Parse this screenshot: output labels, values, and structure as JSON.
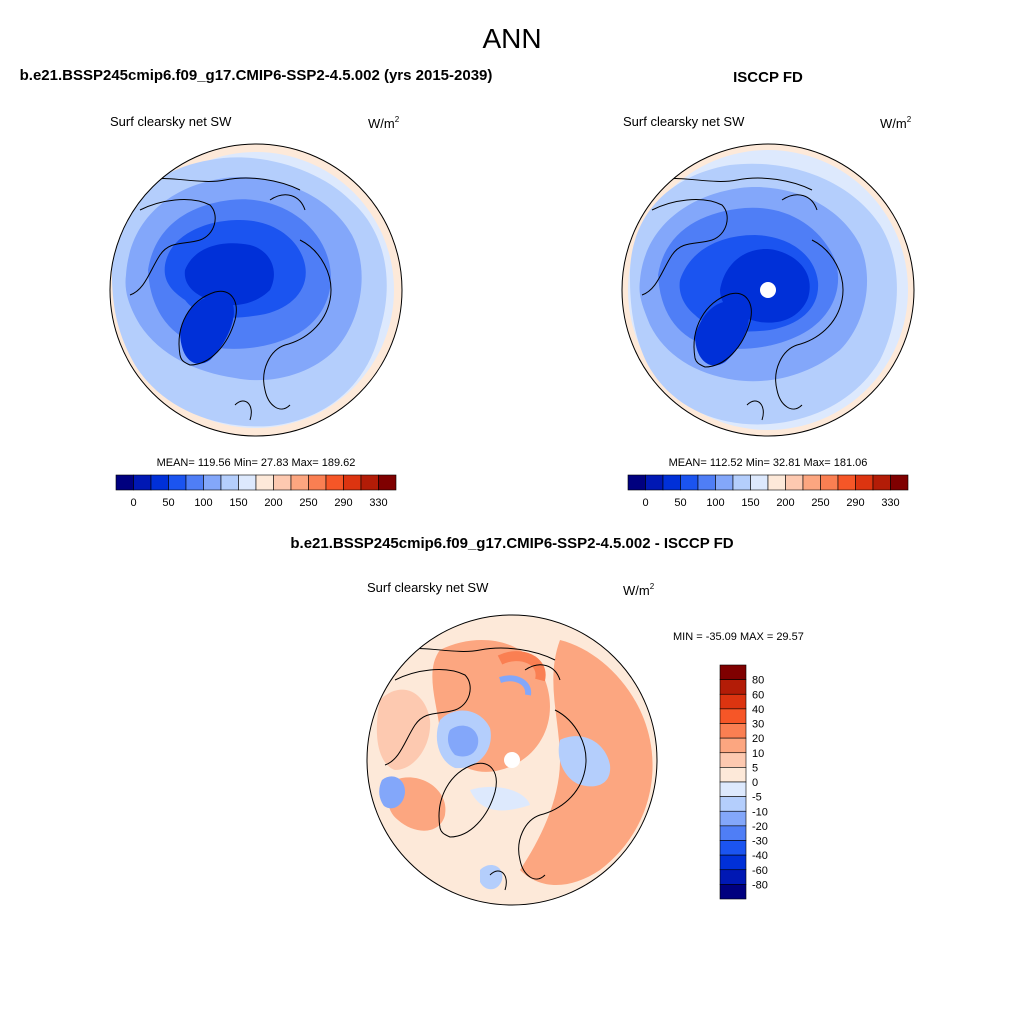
{
  "figure": {
    "title": "ANN"
  },
  "panels": [
    {
      "id": "model",
      "title": "b.e21.BSSP245cmip6.f09_g17.CMIP6-SSP2-4.5.002 (yrs 2015-2039)",
      "variable": "Surf clearsky net SW",
      "units_base": "W/m",
      "units_exp": "2",
      "stats": "MEAN= 119.56  Min=  27.83  Max= 189.62",
      "has_pole_hole": false
    },
    {
      "id": "obs",
      "title": "ISCCP FD",
      "variable": "Surf clearsky net SW",
      "units_base": "W/m",
      "units_exp": "2",
      "stats": "MEAN= 112.52  Min=  32.81  Max= 181.06",
      "has_pole_hole": true
    },
    {
      "id": "diff",
      "title": "b.e21.BSSP245cmip6.f09_g17.CMIP6-SSP2-4.5.002 - ISCCP FD",
      "variable": "Surf clearsky net SW",
      "units_base": "W/m",
      "units_exp": "2",
      "stats": "MIN = -35.09 MAX =  29.57",
      "has_pole_hole": true
    }
  ],
  "colorbars": {
    "absolute": {
      "colors": [
        "#00007f",
        "#0018b4",
        "#0030d8",
        "#1b54f0",
        "#4f7ef6",
        "#83a7fa",
        "#b4cefc",
        "#dde9fd",
        "#fde9d9",
        "#fdc9b0",
        "#fca680",
        "#fa7f52",
        "#f65627",
        "#dc3410",
        "#b31c07",
        "#7f0000"
      ],
      "tick_labels": [
        "0",
        "50",
        "100",
        "150",
        "200",
        "250",
        "290",
        "330"
      ]
    },
    "difference": {
      "colors": [
        "#7f0000",
        "#b31c07",
        "#dc3410",
        "#f65627",
        "#fa7f52",
        "#fca680",
        "#fdc9b0",
        "#fde9d9",
        "#dde9fd",
        "#b4cefc",
        "#83a7fa",
        "#4f7ef6",
        "#1b54f0",
        "#0030d8",
        "#0018b4",
        "#00007f"
      ],
      "tick_labels": [
        "80",
        "60",
        "40",
        "30",
        "20",
        "10",
        "5",
        "0",
        "-5",
        "-10",
        "-20",
        "-30",
        "-40",
        "-60",
        "-80"
      ]
    }
  }
}
